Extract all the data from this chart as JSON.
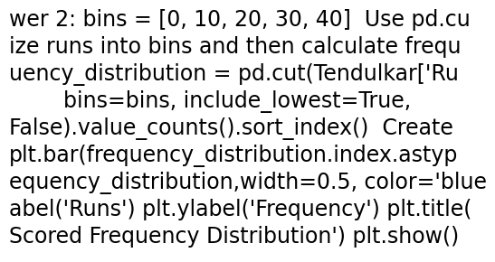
{
  "background_color": "#ffffff",
  "text_color": "#000000",
  "font_size": 17.0,
  "lines": [
    "wer 2: bins = [0, 10, 20, 30, 40]  Use pd.cu",
    "ize runs into bins and then calculate frequ",
    "uency_distribution = pd.cut(Tendulkar['Ru",
    "        bins=bins, include_lowest=True,",
    "False).value_counts().sort_index()  Create",
    "plt.bar(frequency_distribution.index.astyp",
    "equency_distribution,width=0.5, color='blue",
    "abel('Runs') plt.ylabel('Frequency') plt.title(",
    "Scored Frequency Distribution') plt.show()"
  ]
}
